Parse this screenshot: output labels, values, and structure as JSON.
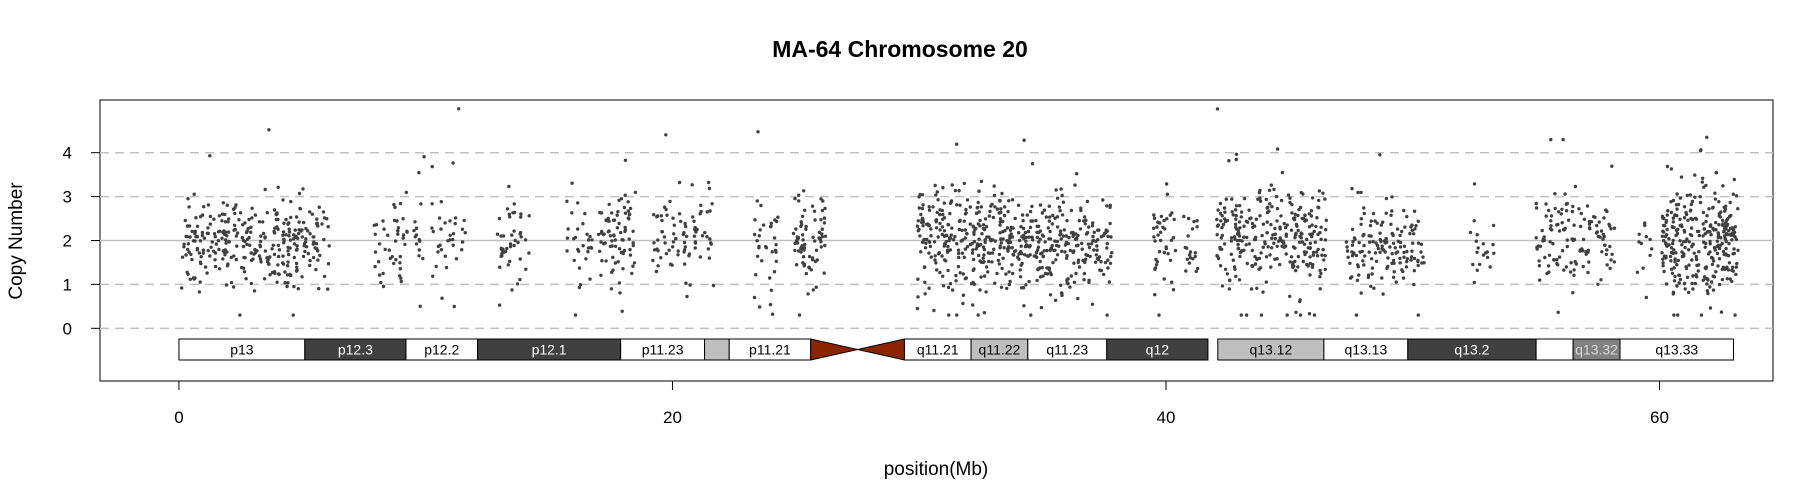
{
  "chart_data": {
    "type": "scatter",
    "title": "MA-64  Chromosome 20",
    "xlabel": "position(Mb)",
    "ylabel": "Copy Number",
    "xlim": [
      -3.2,
      64.6
    ],
    "ylim": [
      -1.2,
      5.2
    ],
    "x_ticks": [
      0,
      20,
      40,
      60
    ],
    "y_ticks": [
      0,
      1,
      2,
      3,
      4
    ],
    "dashed_gridlines_y": [
      0,
      1,
      3,
      4
    ],
    "solid_gridline_y": 2,
    "point_color": "#404040",
    "clusters": [
      {
        "start": 0.1,
        "end": 5.0,
        "n": 260,
        "mean": 2.0,
        "sd": 0.5
      },
      {
        "start": 4.7,
        "end": 6.1,
        "n": 60,
        "mean": 1.9,
        "sd": 0.45
      },
      {
        "start": 7.8,
        "end": 8.7,
        "n": 18,
        "mean": 1.9,
        "sd": 0.45
      },
      {
        "start": 8.7,
        "end": 10.0,
        "n": 40,
        "mean": 2.0,
        "sd": 0.5
      },
      {
        "start": 10.2,
        "end": 11.6,
        "n": 35,
        "mean": 2.1,
        "sd": 0.45
      },
      {
        "start": 12.9,
        "end": 14.2,
        "n": 45,
        "mean": 2.0,
        "sd": 0.4
      },
      {
        "start": 15.7,
        "end": 16.8,
        "n": 30,
        "mean": 2.0,
        "sd": 0.5
      },
      {
        "start": 17.0,
        "end": 18.5,
        "n": 80,
        "mean": 2.0,
        "sd": 0.55
      },
      {
        "start": 19.2,
        "end": 21.0,
        "n": 65,
        "mean": 2.1,
        "sd": 0.45
      },
      {
        "start": 21.1,
        "end": 21.7,
        "n": 18,
        "mean": 2.1,
        "sd": 0.45
      },
      {
        "start": 23.3,
        "end": 24.3,
        "n": 35,
        "mean": 1.9,
        "sd": 0.55
      },
      {
        "start": 24.9,
        "end": 26.2,
        "n": 75,
        "mean": 2.0,
        "sd": 0.5
      },
      {
        "start": 29.9,
        "end": 33.5,
        "n": 270,
        "mean": 2.0,
        "sd": 0.6
      },
      {
        "start": 33.5,
        "end": 37.8,
        "n": 290,
        "mean": 1.95,
        "sd": 0.55
      },
      {
        "start": 39.5,
        "end": 40.4,
        "n": 40,
        "mean": 2.1,
        "sd": 0.55
      },
      {
        "start": 40.6,
        "end": 41.3,
        "n": 20,
        "mean": 2.0,
        "sd": 0.4
      },
      {
        "start": 42.0,
        "end": 46.5,
        "n": 290,
        "mean": 2.0,
        "sd": 0.55
      },
      {
        "start": 47.3,
        "end": 50.5,
        "n": 150,
        "mean": 1.9,
        "sd": 0.5
      },
      {
        "start": 52.3,
        "end": 53.3,
        "n": 20,
        "mean": 2.0,
        "sd": 0.5
      },
      {
        "start": 55.0,
        "end": 58.2,
        "n": 130,
        "mean": 2.0,
        "sd": 0.5
      },
      {
        "start": 59.0,
        "end": 59.7,
        "n": 12,
        "mean": 1.9,
        "sd": 0.5
      },
      {
        "start": 60.1,
        "end": 63.2,
        "n": 310,
        "mean": 2.0,
        "sd": 0.6
      }
    ],
    "ideogram": {
      "bands": [
        {
          "name": "p13",
          "start": 0.0,
          "end": 5.1,
          "fill": "#ffffff",
          "text": "#000000"
        },
        {
          "name": "p12.3",
          "start": 5.1,
          "end": 9.2,
          "fill": "#404040",
          "text": "#ffffff"
        },
        {
          "name": "p12.2",
          "start": 9.2,
          "end": 12.1,
          "fill": "#ffffff",
          "text": "#000000"
        },
        {
          "name": "p12.1",
          "start": 12.1,
          "end": 17.9,
          "fill": "#404040",
          "text": "#ffffff"
        },
        {
          "name": "p11.23",
          "start": 17.9,
          "end": 21.3,
          "fill": "#ffffff",
          "text": "#000000"
        },
        {
          "name": "",
          "start": 21.3,
          "end": 22.3,
          "fill": "#bfbfbf",
          "text": "#000000"
        },
        {
          "name": "p11.21",
          "start": 22.3,
          "end": 25.6,
          "fill": "#ffffff",
          "text": "#000000"
        },
        {
          "name": "q11.21",
          "start": 29.4,
          "end": 32.1,
          "fill": "#ffffff",
          "text": "#000000"
        },
        {
          "name": "q11.22",
          "start": 32.1,
          "end": 34.4,
          "fill": "#bfbfbf",
          "text": "#000000"
        },
        {
          "name": "q11.23",
          "start": 34.4,
          "end": 37.6,
          "fill": "#ffffff",
          "text": "#000000"
        },
        {
          "name": "q12",
          "start": 37.6,
          "end": 41.7,
          "fill": "#404040",
          "text": "#ffffff"
        },
        {
          "name": "q13.12",
          "start": 42.1,
          "end": 46.4,
          "fill": "#bfbfbf",
          "text": "#000000"
        },
        {
          "name": "q13.13",
          "start": 46.4,
          "end": 49.8,
          "fill": "#ffffff",
          "text": "#000000"
        },
        {
          "name": "q13.2",
          "start": 49.8,
          "end": 55.0,
          "fill": "#404040",
          "text": "#ffffff"
        },
        {
          "name": "",
          "start": 55.0,
          "end": 56.5,
          "fill": "#ffffff",
          "text": "#000000"
        },
        {
          "name": "q13.32",
          "start": 56.5,
          "end": 58.4,
          "fill": "#808080",
          "text": "#d9d9d9"
        },
        {
          "name": "q13.33",
          "start": 58.4,
          "end": 63.0,
          "fill": "#ffffff",
          "text": "#000000"
        }
      ],
      "centromere": {
        "start": 25.6,
        "end": 29.4,
        "fill": "#8b2500"
      }
    }
  }
}
